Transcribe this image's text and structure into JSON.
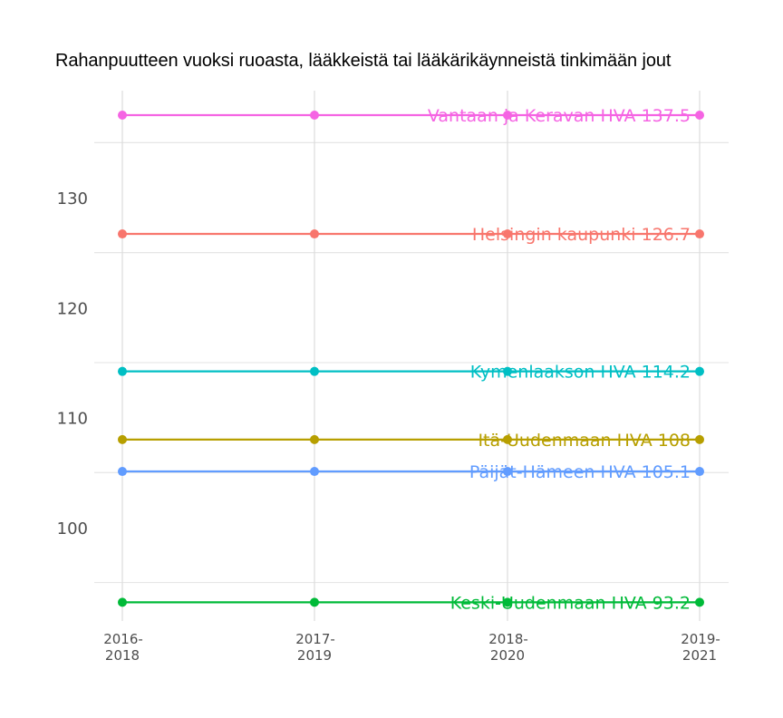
{
  "title": "Rahanpuutteen vuoksi ruoasta, lääkkeistä tai lääkärikäynneistä tinkimään jout",
  "chart_data": {
    "type": "line",
    "title": "Rahanpuutteen vuoksi ruoasta, lääkkeistä tai lääkärikäynneistä tinkimään jout",
    "xlabel": "",
    "ylabel": "",
    "categories": [
      "2016-\n2018",
      "2017-\n2019",
      "2018-\n2020",
      "2019-\n2021"
    ],
    "x_tick_lines": [
      [
        "2016-",
        "2018"
      ],
      [
        "2017-",
        "2019"
      ],
      [
        "2018-",
        "2020"
      ],
      [
        "2019-",
        "2021"
      ]
    ],
    "y_ticks": [
      100,
      110,
      120,
      130
    ],
    "ylim": [
      91.5,
      139.5
    ],
    "grid": true,
    "legend": "none (direct labels at right end)",
    "series": [
      {
        "name": "Vantaan ja Keravan HVA",
        "label": "Vantaan ja Keravan HVA 137.5",
        "color": "#F564E3",
        "values": [
          137.5,
          137.5,
          137.5,
          137.5
        ]
      },
      {
        "name": "Helsingin kaupunki",
        "label": "Helsingin kaupunki 126.7",
        "color": "#F8766D",
        "values": [
          126.7,
          126.7,
          126.7,
          126.7
        ]
      },
      {
        "name": "Kymenlaakson HVA",
        "label": "Kymenlaakson HVA 114.2",
        "color": "#00BFC4",
        "values": [
          114.2,
          114.2,
          114.2,
          114.2
        ]
      },
      {
        "name": "Itä-Uudenmaan HVA",
        "label": "Itä-Uudenmaan HVA 108",
        "color": "#B79F00",
        "values": [
          108,
          108,
          108,
          108
        ]
      },
      {
        "name": "Päijät-Hämeen HVA",
        "label": "Päijät-Hämeen HVA 105.1",
        "color": "#619CFF",
        "values": [
          105.1,
          105.1,
          105.1,
          105.1
        ]
      },
      {
        "name": "Keski-Uudenmaan HVA",
        "label": "Keski-Uudenmaan HVA 93.2",
        "color": "#00BA38",
        "values": [
          93.2,
          93.2,
          93.2,
          93.2
        ]
      }
    ]
  }
}
